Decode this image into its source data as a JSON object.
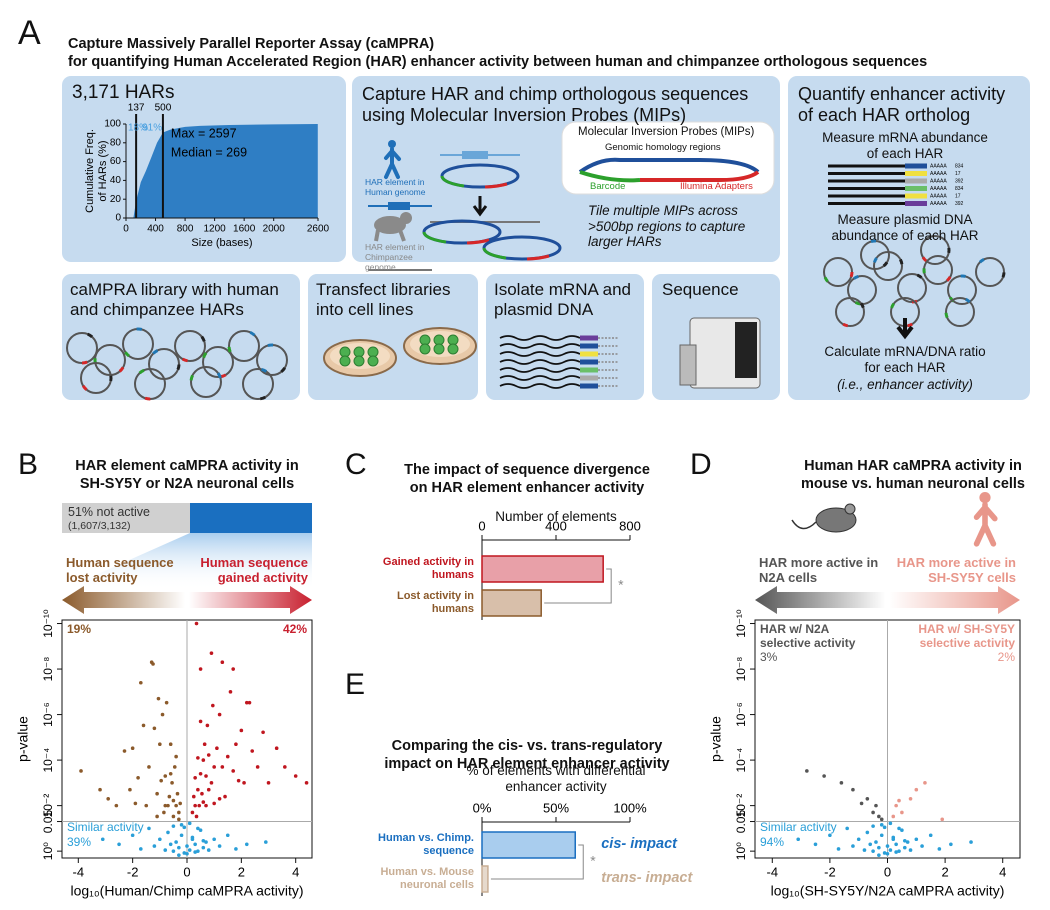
{
  "panel_labels": {
    "a": "A",
    "b": "B",
    "c": "C",
    "d": "D",
    "e": "E"
  },
  "panel_a": {
    "title": [
      "Capture Massively Parallel Reporter Assay (caMPRA)",
      "for quantifying Human Accelerated Region (HAR) enhancer activity between human and chimpanzee orthologous sequences"
    ],
    "capture": {
      "title": "Capture HAR and chimp orthologous sequences using Molecular Inversion Probes (MIPs)",
      "human_label": "HAR element in Human genome",
      "chimp_label": "HAR element in Chimpanzee genome",
      "mip_title": "Molecular Inversion Probes (MIPs)",
      "homology": "Genomic homology regions",
      "barcode": "Barcode",
      "adapters": "Illumina Adapters",
      "note": "Tile multiple MIPs across >500bp regions to capture larger HARs"
    },
    "quantify": {
      "title": "Quantify enhancer activity of each HAR ortholog",
      "mrna": "Measure mRNA abundance of each HAR",
      "poly_a": "AAAAA",
      "counts": [
        "834",
        "17",
        "392",
        "834",
        "17",
        "392"
      ],
      "dna": "Measure plasmid DNA abundance of each HAR",
      "ratio": "Calculate mRNA/DNA ratio for each HAR",
      "ratio_note": "(i.e., enhancer activity)"
    },
    "library": "caMPRA library with human and chimpanzee HARs",
    "transfect": "Transfect libraries into cell lines",
    "isolate": "Isolate mRNA and plasmid DNA",
    "sequence": "Sequence"
  },
  "chart_data": [
    {
      "type": "area",
      "title": "3,171 HARs",
      "xlabel": "Size (bases)",
      "ylabel": [
        "Cumulative Freq.",
        "of HARs (%)"
      ],
      "x": [
        100,
        137,
        200,
        269,
        350,
        420,
        500,
        600,
        800,
        1000,
        1400,
        2000,
        2597
      ],
      "values": [
        0,
        18,
        38,
        50,
        66,
        80,
        91,
        94,
        97,
        98,
        99,
        99.6,
        100
      ],
      "color": "#2f7ec4",
      "xlim": [
        0,
        2600
      ],
      "ylim": [
        0,
        100
      ],
      "xticks": [
        0,
        400,
        800,
        1200,
        1600,
        2000,
        2600
      ],
      "yticks": [
        0,
        20,
        40,
        60,
        80,
        100
      ],
      "vlines": [
        137,
        500
      ],
      "annotations": [
        "18%",
        "91%",
        "Max = 2597",
        "Median = 269"
      ]
    },
    {
      "type": "scatter",
      "title": [
        "HAR element caMPRA activity in",
        "SH-SY5Y or N2A neuronal cells"
      ],
      "xlabel": "log₁₀(Human/Chimp caMPRA activity)",
      "ylabel": "p-value",
      "log_y": true,
      "xlim": [
        -4.6,
        4.6
      ],
      "ylim": [
        2,
        7e-11
      ],
      "xticks": [
        -4,
        -2,
        0,
        2,
        4
      ],
      "yticks": [
        {
          "value": 1,
          "label": "10⁰"
        },
        0.05,
        {
          "value": 0.01,
          "label": "10⁻²"
        },
        {
          "value": 0.0001,
          "label": "10⁻⁴"
        },
        {
          "value": 1e-06,
          "label": "10⁻⁶"
        },
        {
          "value": 1e-08,
          "label": "10⁻⁸"
        },
        {
          "value": 1e-10,
          "label": "10⁻¹⁰"
        }
      ],
      "ref_lines": {
        "x": 0,
        "y": 0.05
      },
      "summary": {
        "label": "51% not active",
        "count": "(1,607/3,132)"
      },
      "arrows": {
        "left": "Human sequence lost activity",
        "right": "Human sequence gained activity",
        "left_color": "#8b5a2b",
        "right_color": "#c8202f"
      },
      "annotations": {
        "top_left": "19%",
        "top_right": "42%",
        "bottom_left": "Similar activity",
        "bottom_left_pct": "39%"
      },
      "series": [
        {
          "color": "#8b5a2b",
          "x": [
            -3.9,
            -3.2,
            -2.9,
            -2.6,
            -2.3,
            -2.1,
            -1.9,
            -1.8,
            -1.6,
            -1.5,
            -1.4,
            -1.3,
            -1.2,
            -1.1,
            -1.0,
            -0.95,
            -0.9,
            -0.85,
            -0.8,
            -0.75,
            -0.7,
            -0.65,
            -0.6,
            -0.55,
            -0.5,
            -0.45,
            -0.4,
            -0.35,
            -0.3,
            -0.25,
            -1.7,
            -1.25,
            -1.05,
            -0.6,
            -0.4,
            -2.0,
            -1.1,
            -0.8,
            -0.5,
            -0.3
          ],
          "values": [
            0.0003,
            0.002,
            0.005,
            0.01,
            4e-05,
            0.002,
            0.008,
            0.0006,
            3e-06,
            0.01,
            0.0002,
            5e-09,
            4e-06,
            0.003,
            2e-05,
            0.0008,
            1e-06,
            0.02,
            0.0005,
            3e-07,
            0.01,
            0.004,
            2e-05,
            0.001,
            0.006,
            0.0002,
            0.01,
            0.003,
            0.02,
            0.008,
            4e-08,
            6e-09,
            2e-07,
            0.0004,
            7e-05,
            3e-05,
            0.03,
            0.01,
            0.03,
            0.04
          ]
        },
        {
          "color": "#c0161f",
          "x": [
            0.2,
            0.25,
            0.3,
            0.3,
            0.35,
            0.4,
            0.4,
            0.45,
            0.5,
            0.5,
            0.55,
            0.6,
            0.6,
            0.65,
            0.7,
            0.7,
            0.75,
            0.8,
            0.8,
            0.9,
            0.95,
            1.0,
            1.0,
            1.1,
            1.2,
            1.2,
            1.3,
            1.4,
            1.5,
            1.6,
            1.7,
            1.8,
            1.9,
            2.0,
            2.1,
            2.2,
            2.4,
            2.6,
            2.8,
            3.0,
            3.3,
            3.6,
            4.0,
            4.4,
            0.5,
            0.9,
            1.3,
            1.7,
            2.3,
            0.35
          ],
          "values": [
            0.02,
            0.004,
            0.01,
            0.0006,
            0.03,
            0.002,
            8e-05,
            0.01,
            0.0004,
            2e-06,
            0.003,
            0.0001,
            0.007,
            2e-05,
            0.0005,
            0.01,
            3e-06,
            0.002,
            6e-05,
            0.001,
            4e-07,
            0.0002,
            0.008,
            3e-05,
            0.005,
            1e-06,
            0.0002,
            0.004,
            7e-05,
            1e-07,
            0.0003,
            2e-05,
            0.0008,
            5e-06,
            0.001,
            3e-07,
            4e-05,
            0.0002,
            6e-06,
            0.001,
            3e-05,
            0.0002,
            0.0005,
            0.001,
            1e-08,
            2e-09,
            5e-09,
            1e-08,
            3e-07,
            1e-10
          ]
        },
        {
          "color": "#2a9fd8",
          "x": [
            -3.1,
            -2.5,
            -2.0,
            -1.7,
            -1.4,
            -1.2,
            -1.0,
            -0.8,
            -0.7,
            -0.6,
            -0.5,
            -0.4,
            -0.3,
            -0.2,
            -0.1,
            0,
            0.1,
            0.2,
            0.3,
            0.4,
            0.5,
            0.6,
            0.7,
            0.8,
            1.0,
            1.2,
            1.5,
            1.8,
            2.2,
            2.9,
            -0.5,
            -0.2,
            0.1,
            0.4,
            -0.3,
            0,
            0.3,
            -0.1,
            0.2,
            0.6
          ],
          "values": [
            0.3,
            0.5,
            0.2,
            0.8,
            0.1,
            0.6,
            0.3,
            0.9,
            0.15,
            0.5,
            1,
            0.4,
            0.7,
            0.2,
            1.2,
            0.6,
            0.9,
            0.3,
            0.5,
            1,
            0.12,
            0.7,
            0.4,
            0.9,
            0.3,
            0.6,
            0.2,
            0.8,
            0.5,
            0.4,
            0.08,
            0.07,
            0.06,
            0.1,
            1.5,
            1.3,
            1.1,
            0.09,
            0.25,
            0.35
          ]
        }
      ]
    },
    {
      "type": "hbar",
      "title": [
        "The impact of sequence divergence",
        "on HAR element enhancer activity"
      ],
      "xlabel": "Number of elements",
      "categories": [
        "Gained activity in humans",
        "Lost activity in humans"
      ],
      "values": [
        655,
        320
      ],
      "colors": [
        "#e8a0a8",
        "#d8bfaa"
      ],
      "edge_colors": [
        "#c0161f",
        "#8b5a2b"
      ],
      "label_colors": [
        "#c0161f",
        "#8b5a2b"
      ],
      "xlim": [
        0,
        800
      ],
      "xticks": [
        0,
        400,
        800
      ],
      "significance": "*"
    },
    {
      "type": "hbar",
      "title": [
        "Comparing the cis- vs. trans-regulatory",
        "impact on HAR element enhancer activity"
      ],
      "xlabel": "% of elements with differential enhancer activity",
      "categories": [
        "Human vs. Chimp. sequence",
        "Human vs. Mouse neuronal cells"
      ],
      "values": [
        63,
        4
      ],
      "colors": [
        "#a9cdee",
        "#e6d9cc"
      ],
      "edge_colors": [
        "#1a6fc0",
        "#c8ae94"
      ],
      "label_colors": [
        "#1a6fc0",
        "#c8ae94"
      ],
      "xlim": [
        0,
        100
      ],
      "xticks": [
        {
          "value": 0,
          "label": "0%"
        },
        {
          "value": 50,
          "label": "50%"
        },
        {
          "value": 100,
          "label": "100%"
        }
      ],
      "significance": "*",
      "annotations": [
        "cis- impact",
        "trans- impact"
      ]
    },
    {
      "type": "scatter",
      "title": [
        "Human HAR caMPRA activity in",
        "mouse vs. human neuronal cells"
      ],
      "xlabel": "log₁₀(SH-SY5Y/N2A caMPRA activity)",
      "ylabel": "p-value",
      "log_y": true,
      "xlim": [
        -4.6,
        4.6
      ],
      "ylim": [
        2,
        7e-11
      ],
      "xticks": [
        -4,
        -2,
        0,
        2,
        4
      ],
      "yticks": [
        {
          "value": 1,
          "label": "10⁰"
        },
        0.05,
        {
          "value": 0.01,
          "label": "10⁻²"
        },
        {
          "value": 0.0001,
          "label": "10⁻⁴"
        },
        {
          "value": 1e-06,
          "label": "10⁻⁶"
        },
        {
          "value": 1e-08,
          "label": "10⁻⁸"
        },
        {
          "value": 1e-10,
          "label": "10⁻¹⁰"
        }
      ],
      "ref_lines": {
        "x": 0,
        "y": 0.05
      },
      "arrows": {
        "left": "HAR more active in N2A cells",
        "right": "HAR more active in SH-SY5Y cells",
        "left_color": "#555555",
        "right_color": "#e8968a"
      },
      "annotations": {
        "top_left": "HAR w/ N2A selective activity",
        "top_left_pct": "3%",
        "top_right": "HAR w/ SH-SY5Y selective activity",
        "top_right_pct": "2%",
        "bottom_left": "Similar activity",
        "bottom_left_pct": "94%"
      },
      "series": [
        {
          "color": "#555555",
          "x": [
            -2.8,
            -2.2,
            -1.6,
            -1.2,
            -0.9,
            -0.7,
            -0.5,
            -0.4,
            -0.3,
            -0.2
          ],
          "values": [
            0.0003,
            0.0005,
            0.001,
            0.002,
            0.008,
            0.005,
            0.02,
            0.01,
            0.03,
            0.04
          ]
        },
        {
          "color": "#e8968a",
          "x": [
            0.2,
            0.3,
            0.5,
            0.8,
            1.0,
            1.3,
            1.9,
            0.4
          ],
          "values": [
            0.03,
            0.01,
            0.02,
            0.005,
            0.002,
            0.001,
            0.04,
            0.006
          ]
        },
        {
          "color": "#2a9fd8",
          "x": [
            -3.1,
            -2.5,
            -2.0,
            -1.7,
            -1.4,
            -1.2,
            -1.0,
            -0.8,
            -0.7,
            -0.6,
            -0.5,
            -0.4,
            -0.3,
            -0.2,
            -0.1,
            0,
            0.1,
            0.2,
            0.3,
            0.4,
            0.5,
            0.6,
            0.7,
            0.8,
            1.0,
            1.2,
            1.5,
            1.8,
            2.2,
            2.9,
            -0.5,
            -0.2,
            0.1,
            0.4,
            -0.3,
            0,
            0.3,
            -0.1,
            0.2,
            0.6
          ],
          "values": [
            0.3,
            0.5,
            0.2,
            0.8,
            0.1,
            0.6,
            0.3,
            0.9,
            0.15,
            0.5,
            1,
            0.4,
            0.7,
            0.2,
            1.2,
            0.6,
            0.9,
            0.3,
            0.5,
            1,
            0.12,
            0.7,
            0.4,
            0.9,
            0.3,
            0.6,
            0.2,
            0.8,
            0.5,
            0.4,
            0.08,
            0.07,
            0.06,
            0.1,
            1.5,
            1.3,
            1.1,
            0.09,
            0.25,
            0.35
          ]
        }
      ]
    }
  ]
}
